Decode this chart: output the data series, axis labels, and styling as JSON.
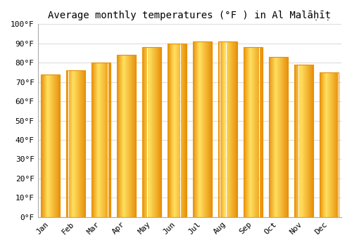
{
  "title": "Average monthly temperatures (°F ) in Al Malāḥīṭ",
  "months": [
    "Jan",
    "Feb",
    "Mar",
    "Apr",
    "May",
    "Jun",
    "Jul",
    "Aug",
    "Sep",
    "Oct",
    "Nov",
    "Dec"
  ],
  "values": [
    74,
    76,
    80,
    84,
    88,
    90,
    91,
    91,
    88,
    83,
    79,
    75
  ],
  "ylim": [
    0,
    100
  ],
  "yticks": [
    0,
    10,
    20,
    30,
    40,
    50,
    60,
    70,
    80,
    90,
    100
  ],
  "ytick_labels": [
    "0°F",
    "10°F",
    "20°F",
    "30°F",
    "40°F",
    "50°F",
    "60°F",
    "70°F",
    "80°F",
    "90°F",
    "100°F"
  ],
  "background_color": "#ffffff",
  "grid_color": "#dddddd",
  "title_fontsize": 10,
  "tick_fontsize": 8,
  "bar_color_left": "#FFB800",
  "bar_color_center": "#FFD966",
  "bar_color_right": "#FFA000",
  "bar_edge_color": "#E89000",
  "bar_width": 0.75
}
